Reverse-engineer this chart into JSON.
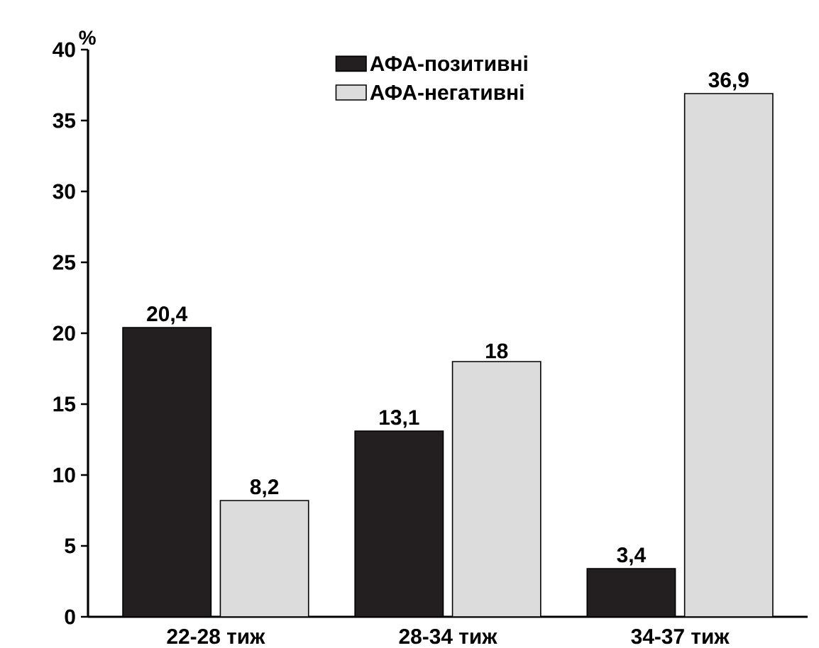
{
  "chart_data": {
    "type": "bar",
    "ylabel": "%",
    "categories": [
      "22-28 тиж",
      "28-34 тиж",
      "34-37 тиж"
    ],
    "series": [
      {
        "name": "АФА-позитивні",
        "color": "#231f20",
        "values": [
          20.4,
          13.1,
          3.4
        ],
        "value_labels": [
          "20,4",
          "13,1",
          "3,4"
        ]
      },
      {
        "name": "АФА-негативні",
        "color": "#dcdcdc",
        "values": [
          8.2,
          18,
          36.9
        ],
        "value_labels": [
          "8,2",
          "18",
          "36,9"
        ]
      }
    ],
    "ylim": [
      0,
      40
    ],
    "yticks": [
      0,
      5,
      10,
      15,
      20,
      25,
      30,
      35,
      40
    ],
    "grid": false,
    "legend": "top"
  }
}
